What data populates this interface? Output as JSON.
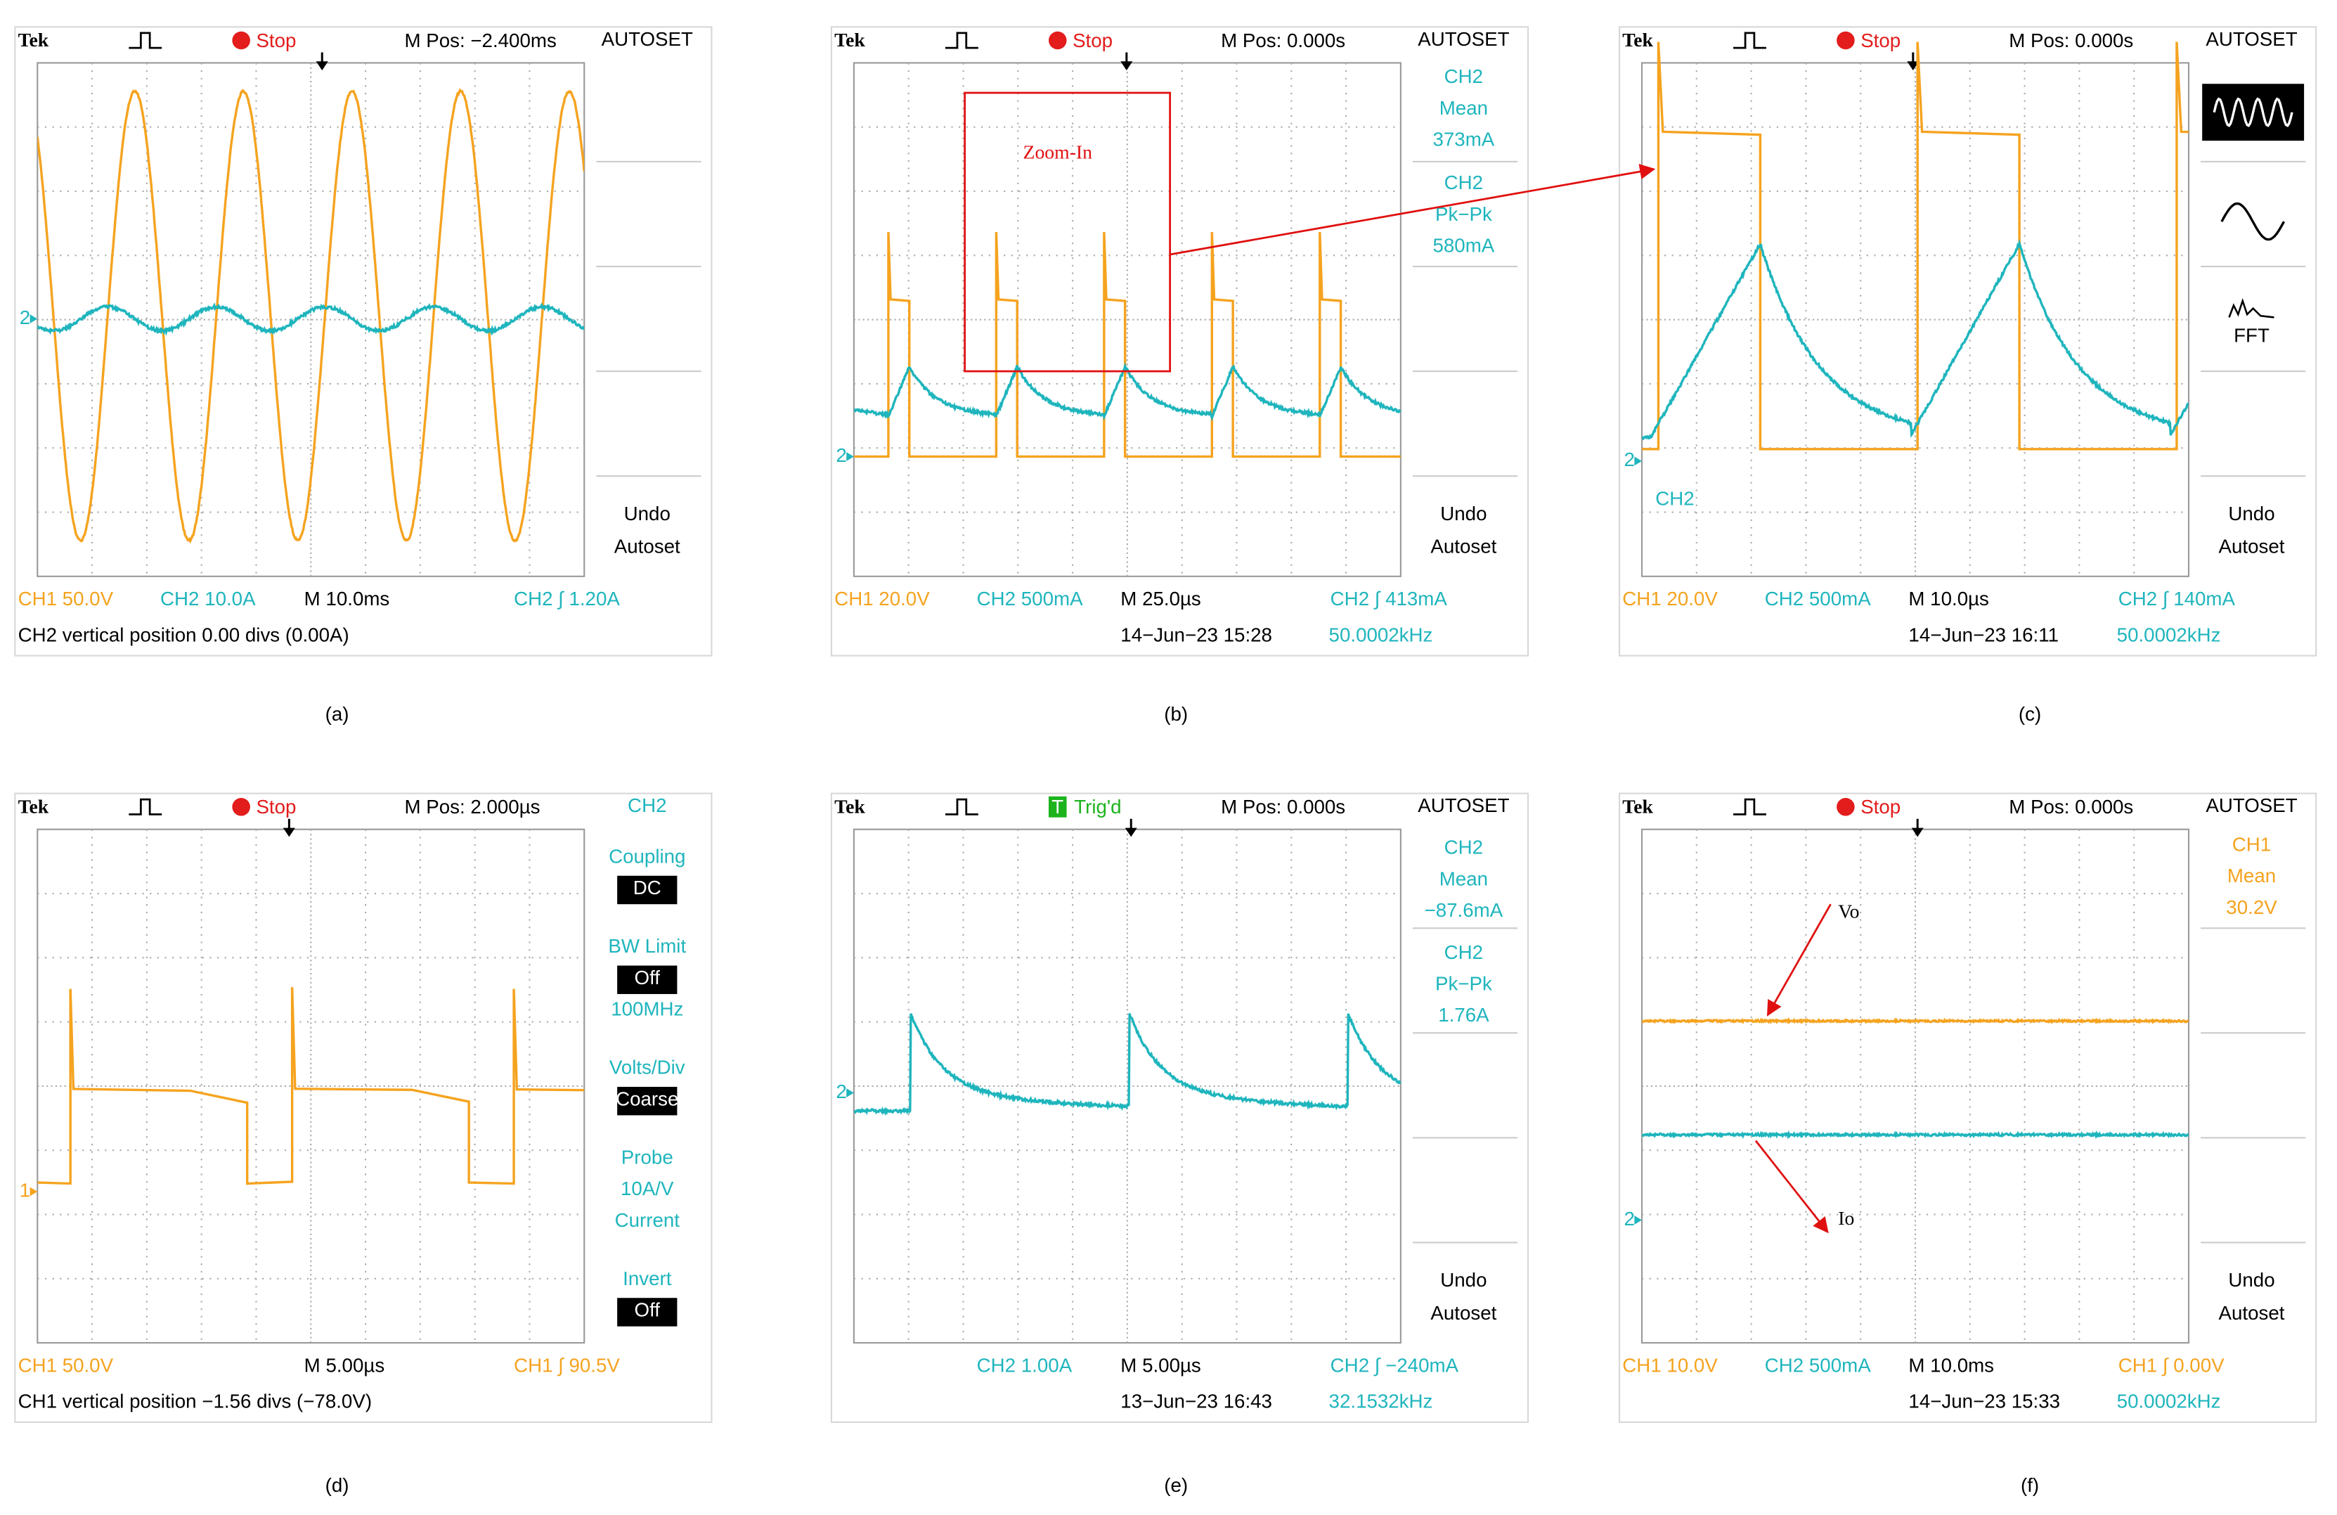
{
  "panels": [
    {
      "caption": "(a)",
      "brand": "Tek",
      "status": "Stop",
      "position": "M Pos: −2.400ms",
      "menu_title": "AUTOSET",
      "menu": [],
      "menu_bottom": [
        "Undo",
        "Autoset"
      ],
      "footer": {
        "ch1": "CH1  50.0V",
        "ch2": "CH2  10.0A",
        "timebase": "M 10.0ms",
        "trigger": "CH2 ∫ 1.20A",
        "note": "CH2 vertical position 0.00 divs (0.00A)"
      },
      "markers": [
        "2"
      ]
    },
    {
      "caption": "(b)",
      "brand": "Tek",
      "status": "Stop",
      "position": "M Pos: 0.000s",
      "menu_title": "AUTOSET",
      "menu_color": "#1fb5bd",
      "menu": [
        {
          "lines": [
            "CH2",
            "Mean",
            "373mA"
          ]
        },
        {
          "lines": [
            "CH2",
            "Pk−Pk",
            "580mA"
          ]
        }
      ],
      "menu_bottom": [
        "Undo",
        "Autoset"
      ],
      "footer": {
        "ch1": "CH1  20.0V",
        "ch2": "CH2  500mA",
        "timebase": "M 25.0µs",
        "trigger": "CH2 ∫ 413mA",
        "date": "14−Jun−23 15:28",
        "frequency": "50.0002kHz"
      },
      "markers": [
        "2"
      ],
      "zoom_label": "Zoom-In"
    },
    {
      "caption": "(c)",
      "brand": "Tek",
      "status": "Stop",
      "position": "M Pos: 0.000s",
      "menu_title": "AUTOSET",
      "menu": [],
      "fft_label": "FFT",
      "menu_bottom": [
        "Undo",
        "Autoset"
      ],
      "footer": {
        "ch1": "CH1  20.0V",
        "ch2": "CH2  500mA",
        "timebase": "M 10.0µs",
        "trigger": "CH2 ∫ 140mA",
        "date": "14−Jun−23 16:11",
        "frequency": "50.0002kHz"
      },
      "markers": [
        "2"
      ],
      "channel_label": "CH2"
    },
    {
      "caption": "(d)",
      "brand": "Tek",
      "status": "Stop",
      "position": "M Pos: 2.000µs",
      "menu_title": "CH2",
      "menu_title_color": "#1fb5bd",
      "menu_color": "#1fb5bd",
      "menu": [
        {
          "lines": [
            "Coupling",
            {
              "text": "DC",
              "inverted": true
            }
          ]
        },
        {
          "lines": [
            "BW Limit",
            {
              "text": "Off",
              "inverted": true
            },
            "100MHz"
          ]
        },
        {
          "lines": [
            "Volts/Div",
            {
              "text": "Coarse",
              "inverted": true
            }
          ]
        },
        {
          "lines": [
            "Probe",
            "10A/V",
            "Current"
          ]
        },
        {
          "lines": [
            "Invert",
            {
              "text": "Off",
              "inverted": true
            }
          ]
        }
      ],
      "footer": {
        "ch1": "CH1  50.0V",
        "timebase": "M 5.00µs",
        "trigger": "CH1 ∫ 90.5V",
        "note": "CH1 vertical position −1.56 divs (−78.0V)"
      },
      "markers": [
        "1"
      ]
    },
    {
      "caption": "(e)",
      "brand": "Tek",
      "status": "Trig'd",
      "status_icon": "T",
      "position": "M Pos: 0.000s",
      "menu_title": "AUTOSET",
      "menu_color": "#1fb5bd",
      "menu": [
        {
          "lines": [
            "CH2",
            "Mean",
            "−87.6mA"
          ]
        },
        {
          "lines": [
            "CH2",
            "Pk−Pk",
            "1.76A"
          ]
        }
      ],
      "menu_bottom": [
        "Undo",
        "Autoset"
      ],
      "footer": {
        "ch2": "CH2  1.00A",
        "timebase": "M 5.00µs",
        "trigger": "CH2 ∫ −240mA",
        "date": "13−Jun−23 16:43",
        "frequency": "32.1532kHz"
      },
      "markers": [
        "2"
      ]
    },
    {
      "caption": "(f)",
      "brand": "Tek",
      "status": "Stop",
      "position": "M Pos: 0.000s",
      "menu_title": "AUTOSET",
      "menu_color": "#f5a31f",
      "menu": [
        {
          "lines": [
            "CH1",
            "Mean",
            "30.2V"
          ]
        }
      ],
      "menu_bottom": [
        "Undo",
        "Autoset"
      ],
      "footer": {
        "ch1": "CH1  10.0V",
        "ch2": "CH2  500mA",
        "timebase": "M 10.0ms",
        "trigger": "CH1 ∫ 0.00V",
        "date": "14−Jun−23 15:33",
        "frequency": "50.0002kHz"
      },
      "markers": [
        "2"
      ],
      "vo_label": "Vo",
      "io_label": "Io"
    }
  ]
}
